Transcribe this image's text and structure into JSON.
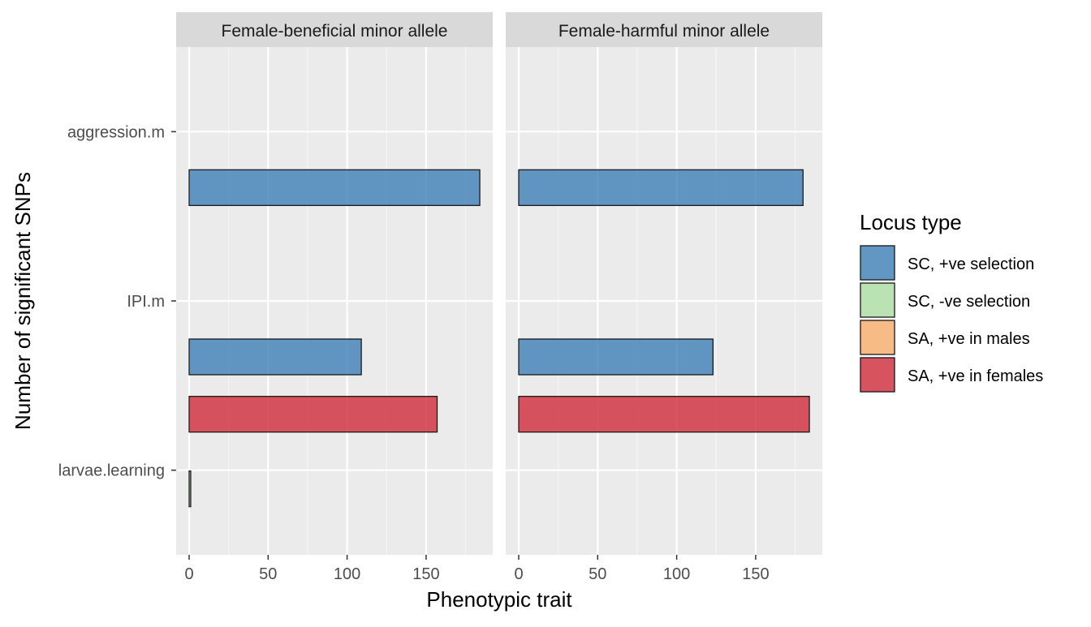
{
  "chart_data": {
    "type": "bar",
    "orientation": "horizontal",
    "xlabel": "Phenotypic trait",
    "ylabel": "Number of significant SNPs",
    "categories": [
      "aggression.m",
      "IPI.m",
      "larvae.learning"
    ],
    "xlim": [
      0,
      190
    ],
    "x_ticks": [
      0,
      50,
      100,
      150
    ],
    "grid": true,
    "legend": {
      "title": "Locus type",
      "position": "right",
      "entries": [
        {
          "name": "SC, +ve selection",
          "color": "#3f7fb7"
        },
        {
          "name": "SC, -ve selection",
          "color": "#acdda2"
        },
        {
          "name": "SA, +ve in males",
          "color": "#f7ad6a"
        },
        {
          "name": "SA, +ve in females",
          "color": "#d02a3b"
        }
      ]
    },
    "facets": [
      {
        "title": "Female-beneficial minor allele",
        "series": [
          {
            "name": "SC, +ve selection",
            "values": [
              184,
              109,
              0
            ]
          },
          {
            "name": "SC, -ve selection",
            "values": [
              0,
              0,
              1
            ]
          },
          {
            "name": "SA, +ve in males",
            "values": [
              0,
              0,
              0
            ]
          },
          {
            "name": "SA, +ve in females",
            "values": [
              0,
              0,
              157
            ]
          }
        ]
      },
      {
        "title": "Female-harmful minor allele",
        "series": [
          {
            "name": "SC, +ve selection",
            "values": [
              180,
              123,
              0
            ]
          },
          {
            "name": "SC, -ve selection",
            "values": [
              0,
              0,
              0
            ]
          },
          {
            "name": "SA, +ve in males",
            "values": [
              0,
              0,
              0
            ]
          },
          {
            "name": "SA, +ve in females",
            "values": [
              0,
              0,
              184
            ]
          }
        ]
      }
    ]
  }
}
